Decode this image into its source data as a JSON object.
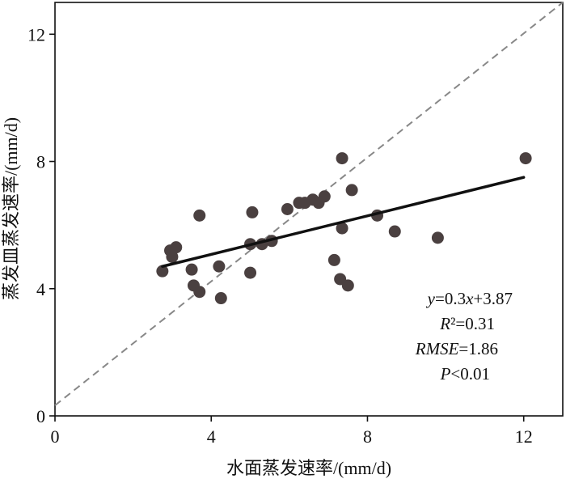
{
  "chart_data": {
    "type": "scatter",
    "title": "",
    "xlabel": "水面蒸发速率/(mm/d)",
    "ylabel": "蒸发皿蒸发速率/(mm/d)",
    "xlim": [
      0,
      13
    ],
    "ylim": [
      0,
      13
    ],
    "xticks": [
      0,
      4,
      8,
      12
    ],
    "yticks": [
      0,
      4,
      8,
      12
    ],
    "xtick_labels": [
      "0",
      "4",
      "8",
      "12"
    ],
    "ytick_labels": [
      "0",
      "4",
      "8",
      "12"
    ],
    "grid": false,
    "points": [
      {
        "x": 2.75,
        "y": 4.55
      },
      {
        "x": 2.95,
        "y": 5.2
      },
      {
        "x": 3.0,
        "y": 5.0
      },
      {
        "x": 3.1,
        "y": 5.3
      },
      {
        "x": 3.5,
        "y": 4.6
      },
      {
        "x": 3.55,
        "y": 4.1
      },
      {
        "x": 3.7,
        "y": 3.9
      },
      {
        "x": 3.7,
        "y": 6.3
      },
      {
        "x": 4.2,
        "y": 4.7
      },
      {
        "x": 4.25,
        "y": 3.7
      },
      {
        "x": 5.0,
        "y": 5.4
      },
      {
        "x": 5.0,
        "y": 4.5
      },
      {
        "x": 5.05,
        "y": 6.4
      },
      {
        "x": 5.3,
        "y": 5.4
      },
      {
        "x": 5.55,
        "y": 5.5
      },
      {
        "x": 5.95,
        "y": 6.5
      },
      {
        "x": 6.25,
        "y": 6.7
      },
      {
        "x": 6.4,
        "y": 6.7
      },
      {
        "x": 6.6,
        "y": 6.8
      },
      {
        "x": 6.75,
        "y": 6.7
      },
      {
        "x": 6.9,
        "y": 6.9
      },
      {
        "x": 7.15,
        "y": 4.9
      },
      {
        "x": 7.3,
        "y": 4.3
      },
      {
        "x": 7.35,
        "y": 8.1
      },
      {
        "x": 7.35,
        "y": 5.9
      },
      {
        "x": 7.5,
        "y": 4.1
      },
      {
        "x": 7.6,
        "y": 7.1
      },
      {
        "x": 8.25,
        "y": 6.3
      },
      {
        "x": 8.7,
        "y": 5.8
      },
      {
        "x": 9.8,
        "y": 5.6
      },
      {
        "x": 12.05,
        "y": 8.1
      }
    ],
    "fit_line": {
      "x": [
        2.75,
        12.0
      ],
      "y": [
        4.7,
        7.5
      ]
    },
    "reference_line": {
      "x": [
        0,
        13
      ],
      "y": [
        0.33,
        13.0
      ]
    },
    "annotations": {
      "equation_lhs": "y",
      "equation_eq": "=0.3",
      "equation_var": "x",
      "equation_rest": "+3.87",
      "r2": "R²=0.31",
      "rmse_label": "RMSE",
      "rmse_value": "=1.86",
      "p_label": "P",
      "p_value": "<0.01"
    },
    "colors": {
      "point": "#4a4040",
      "fit_line": "#111111",
      "reference_line": "#888888",
      "axis": "#111111"
    }
  }
}
